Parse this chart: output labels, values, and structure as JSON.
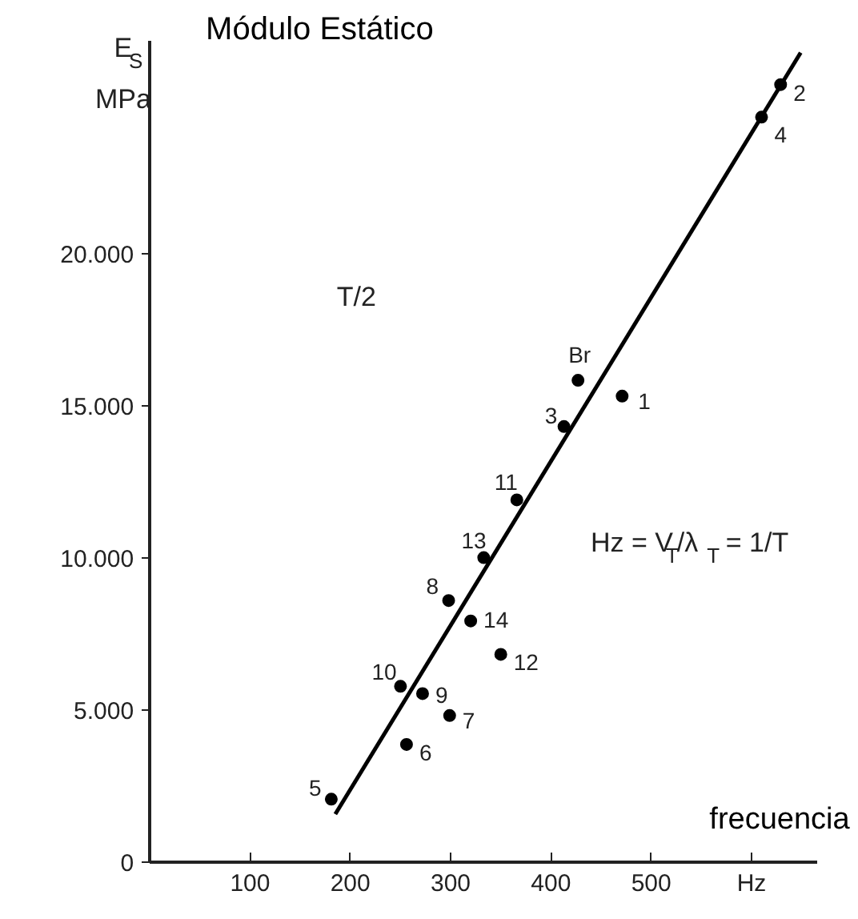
{
  "chart_data": {
    "type": "scatter",
    "title": "Módulo Estático",
    "xlabel": "frecuencia",
    "ylabel": "E$_{S}$ MPa",
    "x": [
      471,
      629,
      413,
      610,
      181,
      256,
      299,
      298,
      272,
      250,
      366,
      350,
      333,
      320,
      427
    ],
    "series": [
      {
        "color": "#000000",
        "marker": "circle",
        "values": [
          15320,
          25560,
          14320,
          24490,
          2070,
          3870,
          4820,
          8600,
          5540,
          5780,
          11910,
          6830,
          10010,
          7930,
          15840
        ]
      },
      {
        "type": "line",
        "color": "#000000",
        "x": [
          185,
          649
        ],
        "values": [
          1580,
          26610
        ]
      }
    ],
    "xlim": [
      0,
      666
    ],
    "ylim": [
      0,
      27000
    ],
    "xticks": [
      100,
      200,
      300,
      400,
      500,
      {
        "value": 600,
        "label": "Hz"
      }
    ],
    "yticks": [
      0,
      {
        "value": 5000,
        "label": "5.000"
      },
      {
        "value": 10000,
        "label": "10.000"
      },
      {
        "value": 15000,
        "label": "15.000"
      },
      {
        "value": 20000,
        "label": "20.000"
      }
    ],
    "grid": false,
    "line_style": "solid",
    "annotations": [
      {
        "text": "1",
        "x": 471,
        "y": 15320
      },
      {
        "text": "2",
        "x": 629,
        "y": 25560
      },
      {
        "text": "3",
        "x": 413,
        "y": 14320
      },
      {
        "text": "4",
        "x": 610,
        "y": 24490
      },
      {
        "text": "5",
        "x": 181,
        "y": 2070
      },
      {
        "text": "6",
        "x": 256,
        "y": 3870
      },
      {
        "text": "7",
        "x": 299,
        "y": 4820
      },
      {
        "text": "8",
        "x": 298,
        "y": 8600
      },
      {
        "text": "9",
        "x": 272,
        "y": 5540
      },
      {
        "text": "10",
        "x": 250,
        "y": 5780
      },
      {
        "text": "11",
        "x": 366,
        "y": 11910
      },
      {
        "text": "12",
        "x": 350,
        "y": 6830
      },
      {
        "text": "13",
        "x": 333,
        "y": 10010
      },
      {
        "text": "14",
        "x": 320,
        "y": 7930
      },
      {
        "text": "Br",
        "x": 427,
        "y": 15840
      },
      "Hz = V$_{T}$/λ$_{T}$ = 1/T",
      "T/2"
    ]
  }
}
